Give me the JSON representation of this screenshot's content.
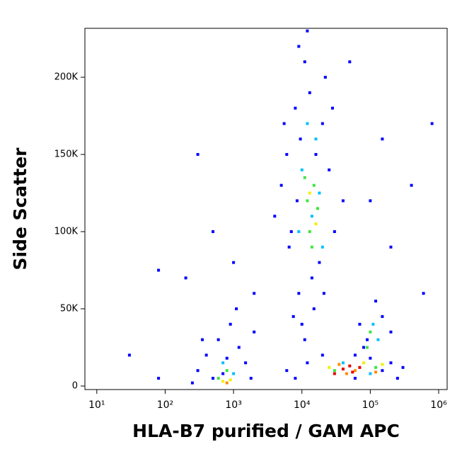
{
  "chart_data": {
    "type": "scatter",
    "x_label": "HLA-B7 purified / GAM APC",
    "y_label": "Side Scatter",
    "x_scale": "log",
    "xlim": [
      6.7,
      1330000
    ],
    "ylim": [
      -2300,
      231700
    ],
    "xticks": [
      {
        "value": 10,
        "label": "10¹"
      },
      {
        "value": 100,
        "label": "10²"
      },
      {
        "value": 1000,
        "label": "10³"
      },
      {
        "value": 10000,
        "label": "10⁴"
      },
      {
        "value": 100000,
        "label": "10⁵"
      },
      {
        "value": 1000000,
        "label": "10⁶"
      }
    ],
    "yticks": [
      0,
      {
        "value": 50000,
        "label": "50K"
      },
      {
        "value": 100000,
        "label": "100K"
      },
      {
        "value": 150000,
        "label": "150K"
      },
      {
        "value": 200000,
        "label": "200K"
      }
    ],
    "grid": false,
    "series": [
      {
        "color": "#0000ff",
        "x": [
          6000,
          8000,
          9000,
          7000,
          11000,
          13000,
          20000,
          25000,
          18000,
          5000,
          6500,
          10000,
          15000,
          30000,
          22000,
          9500,
          12000,
          40000,
          4000,
          14000,
          8500,
          16000,
          21000,
          7500,
          11000,
          28000,
          5500,
          9000,
          400,
          600,
          300,
          900,
          1200,
          1500,
          700,
          2000,
          500,
          1100,
          250,
          800,
          1800,
          350,
          8000,
          12000,
          20000,
          150000,
          200000,
          300000,
          80000,
          60000,
          6000,
          250000,
          100000,
          70000,
          120000,
          90000,
          150000,
          60000,
          200000,
          30,
          80,
          200,
          500,
          1000,
          300,
          50000,
          150000,
          400000,
          800000,
          200000,
          100000,
          600000,
          80,
          2000
        ],
        "values": [
          150000,
          180000,
          60000,
          100000,
          210000,
          190000,
          170000,
          140000,
          80000,
          130000,
          90000,
          40000,
          50000,
          100000,
          200000,
          160000,
          230000,
          120000,
          110000,
          70000,
          120000,
          150000,
          60000,
          45000,
          30000,
          180000,
          170000,
          220000,
          20000,
          30000,
          10000,
          40000,
          25000,
          15000,
          8000,
          35000,
          5000,
          50000,
          2000,
          18000,
          5000,
          30000,
          5000,
          15000,
          20000,
          10000,
          15000,
          12000,
          25000,
          5000,
          10000,
          5000,
          18000,
          40000,
          55000,
          30000,
          45000,
          20000,
          35000,
          20000,
          5000,
          70000,
          100000,
          80000,
          150000,
          210000,
          160000,
          130000,
          170000,
          90000,
          120000,
          60000,
          75000,
          60000
        ]
      },
      {
        "color": "#00c0ff",
        "x": [
          10000,
          14000,
          18000,
          9000,
          12000,
          20000,
          700,
          1000,
          40000,
          100000,
          110000,
          130000,
          16000
        ],
        "values": [
          140000,
          110000,
          125000,
          100000,
          170000,
          90000,
          15000,
          8000,
          15000,
          8000,
          40000,
          30000,
          160000
        ]
      },
      {
        "color": "#3ce63c",
        "x": [
          12000,
          15000,
          13000,
          17000,
          11000,
          14000,
          800,
          600,
          30000,
          120000,
          100000,
          90000
        ],
        "values": [
          120000,
          130000,
          100000,
          115000,
          135000,
          90000,
          10000,
          5000,
          10000,
          12000,
          35000,
          25000
        ]
      },
      {
        "color": "#f0f000",
        "x": [
          13000,
          16000,
          900,
          25000,
          80000,
          150000,
          700
        ],
        "values": [
          125000,
          105000,
          4000,
          12000,
          15000,
          14000,
          3000
        ]
      },
      {
        "color": "#ff8c00",
        "x": [
          35000,
          60000,
          45000,
          800,
          120000
        ],
        "values": [
          14000,
          10000,
          8000,
          2000,
          9000
        ]
      },
      {
        "color": "#e60000",
        "x": [
          40000,
          50000,
          55000,
          70000,
          30000
        ],
        "values": [
          11000,
          13000,
          9000,
          12000,
          8000
        ]
      }
    ]
  }
}
